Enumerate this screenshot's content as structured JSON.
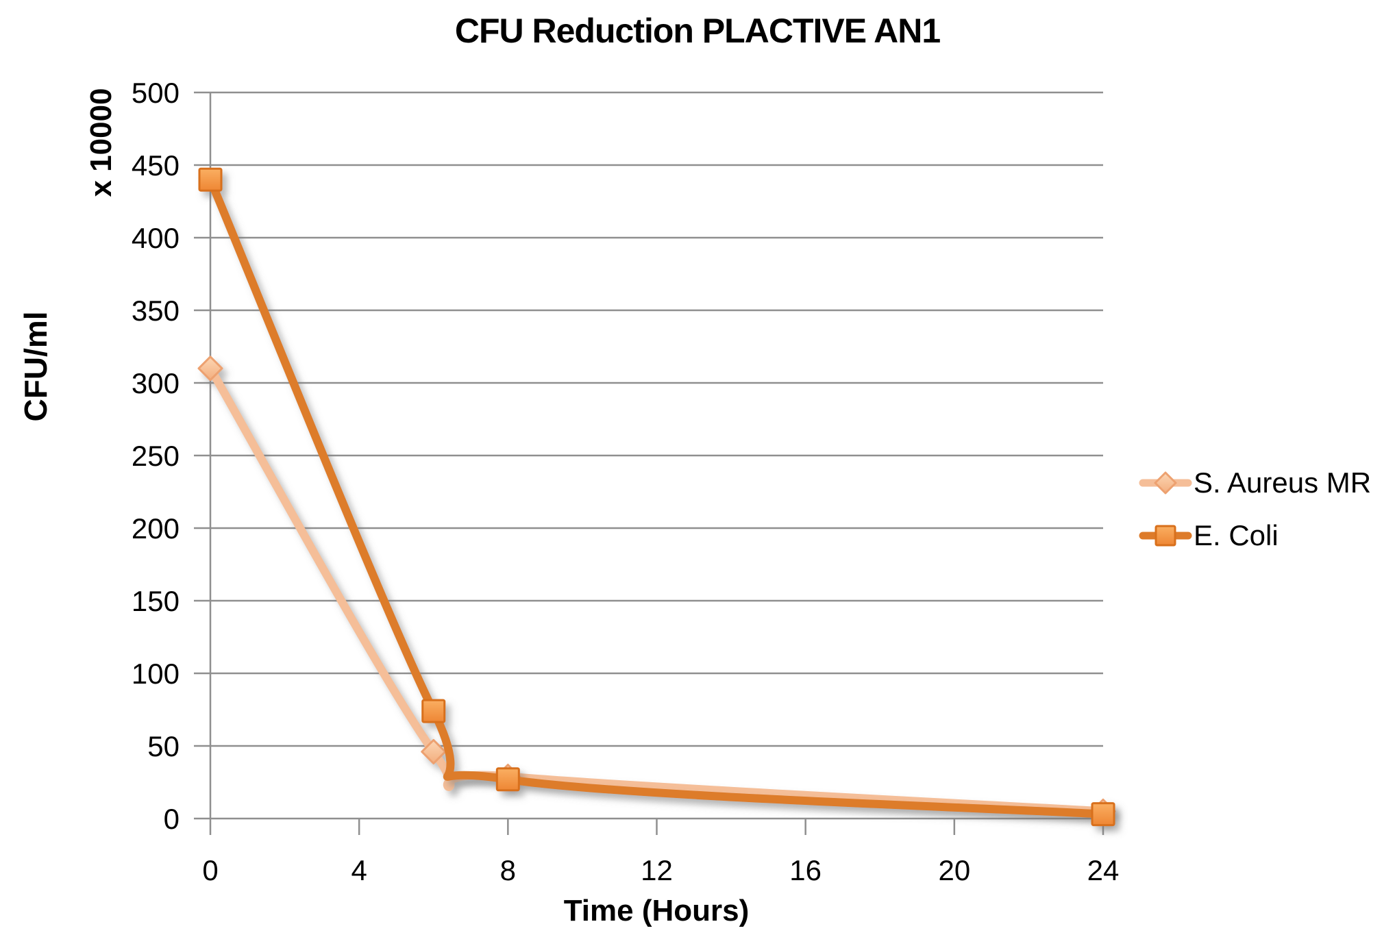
{
  "chart_data": {
    "type": "line",
    "title": "CFU Reduction PLACTIVE AN1",
    "xlabel": "Time (Hours)",
    "ylabel": "CFU/ml",
    "ylabel_unit": "x 10000",
    "x": [
      0,
      6,
      8,
      24
    ],
    "series": [
      {
        "name": "S. Aureus MR",
        "values": [
          310,
          46,
          29,
          5
        ],
        "line_color": "#F5BE98",
        "marker": "diamond",
        "marker_fill_top": "#FCD6B4",
        "marker_fill_bottom": "#F3AE7E",
        "marker_border": "#EDA170"
      },
      {
        "name": "E. Coli",
        "values": [
          440,
          74,
          27,
          3
        ],
        "line_color": "#DD7B2A",
        "marker": "square",
        "marker_fill_top": "#FAAF62",
        "marker_fill_bottom": "#EE8634",
        "marker_border": "#D8701C"
      }
    ],
    "xlim": [
      0,
      24
    ],
    "ylim": [
      0,
      500
    ],
    "xticks": [
      0,
      4,
      8,
      12,
      16,
      20,
      24
    ],
    "yticks": [
      0,
      50,
      100,
      150,
      200,
      250,
      300,
      350,
      400,
      450,
      500
    ],
    "grid": "horizontal",
    "smooth": true,
    "legend_position": "right",
    "gridline_color": "#8F8F8F",
    "axis_color": "#8F8F8F",
    "tick_label_color": "#000000"
  }
}
